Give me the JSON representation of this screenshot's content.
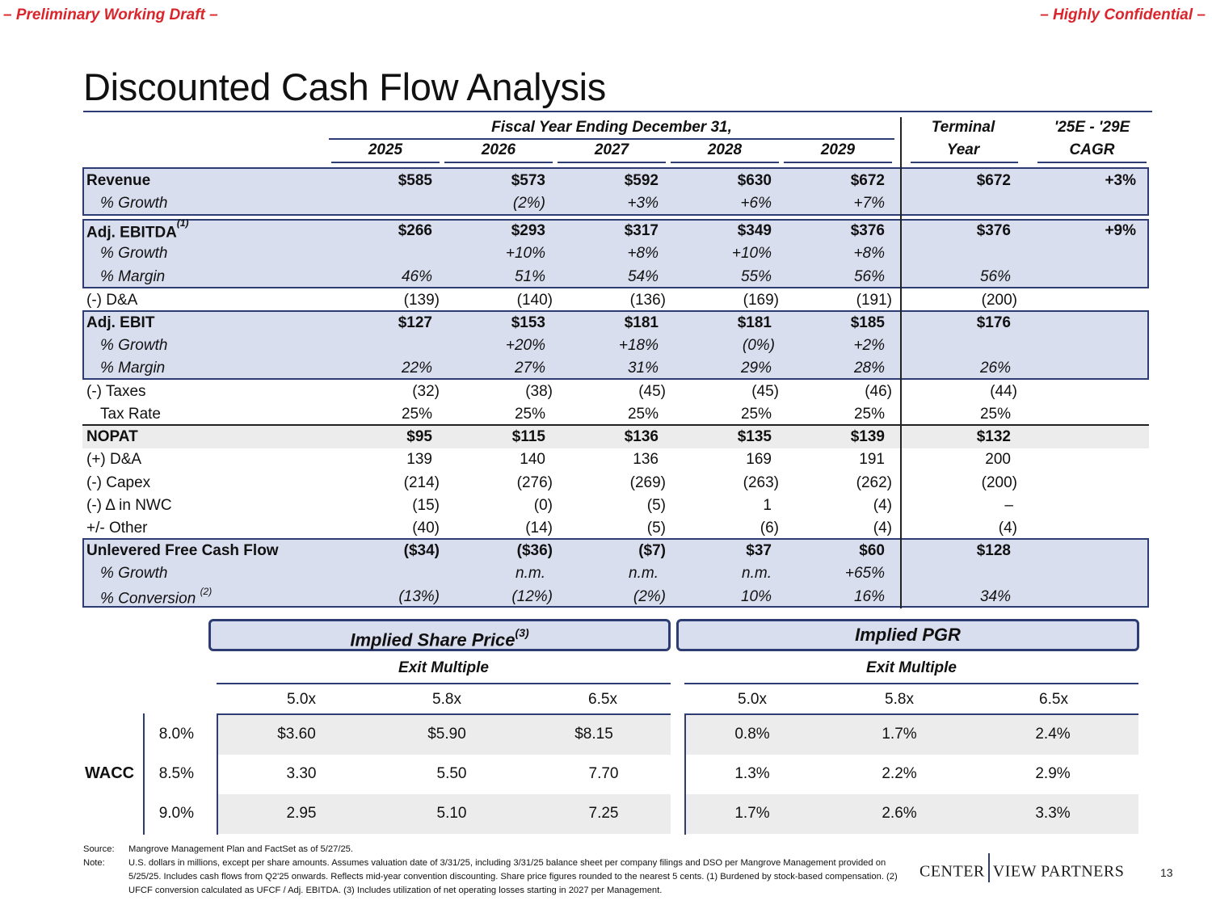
{
  "banner": {
    "left": "– Preliminary Working Draft –",
    "right": "– Highly Confidential –"
  },
  "title": "Discounted Cash Flow Analysis",
  "header": {
    "fiscal": "Fiscal Year Ending December 31,",
    "years": [
      "2025",
      "2026",
      "2027",
      "2028",
      "2029"
    ],
    "terminal_line1": "Terminal",
    "terminal_line2": "Year",
    "cagr_line1": "'25E - '29E",
    "cagr_line2": "CAGR"
  },
  "rows": {
    "revenue": {
      "label": "Revenue",
      "values": [
        "$585",
        "$573",
        "$592",
        "$630",
        "$672"
      ],
      "terminal": "$672",
      "cagr": "+3%"
    },
    "revenue_growth": {
      "label": "% Growth",
      "values": [
        "",
        "(2%)",
        "+3%",
        "+6%",
        "+7%"
      ],
      "terminal": ""
    },
    "ebitda": {
      "label": "Adj. EBITDA",
      "note": "(1)",
      "values": [
        "$266",
        "$293",
        "$317",
        "$349",
        "$376"
      ],
      "terminal": "$376",
      "cagr": "+9%"
    },
    "ebitda_growth": {
      "label": "% Growth",
      "values": [
        "",
        "+10%",
        "+8%",
        "+10%",
        "+8%"
      ],
      "terminal": ""
    },
    "ebitda_margin": {
      "label": "% Margin",
      "values": [
        "46%",
        "51%",
        "54%",
        "55%",
        "56%"
      ],
      "terminal": "56%"
    },
    "da": {
      "label": "(-) D&A",
      "values": [
        "(139)",
        "(140)",
        "(136)",
        "(169)",
        "(191)"
      ],
      "terminal": "(200)"
    },
    "ebit": {
      "label": "Adj. EBIT",
      "values": [
        "$127",
        "$153",
        "$181",
        "$181",
        "$185"
      ],
      "terminal": "$176"
    },
    "ebit_growth": {
      "label": "% Growth",
      "values": [
        "",
        "+20%",
        "+18%",
        "(0%)",
        "+2%"
      ],
      "terminal": ""
    },
    "ebit_margin": {
      "label": "% Margin",
      "values": [
        "22%",
        "27%",
        "31%",
        "29%",
        "28%"
      ],
      "terminal": "26%"
    },
    "taxes": {
      "label": "(-) Taxes",
      "values": [
        "(32)",
        "(38)",
        "(45)",
        "(45)",
        "(46)"
      ],
      "terminal": "(44)"
    },
    "tax_rate": {
      "label": "Tax Rate",
      "values": [
        "25%",
        "25%",
        "25%",
        "25%",
        "25%"
      ],
      "terminal": "25%"
    },
    "nopat": {
      "label": "NOPAT",
      "values": [
        "$95",
        "$115",
        "$136",
        "$135",
        "$139"
      ],
      "terminal": "$132"
    },
    "plus_da": {
      "label": "(+) D&A",
      "values": [
        "139",
        "140",
        "136",
        "169",
        "191"
      ],
      "terminal": "200"
    },
    "capex": {
      "label": "(-) Capex",
      "values": [
        "(214)",
        "(276)",
        "(269)",
        "(263)",
        "(262)"
      ],
      "terminal": "(200)"
    },
    "nwc": {
      "label": "(-) Δ in NWC",
      "values": [
        "(15)",
        "(0)",
        "(5)",
        "1",
        "(4)"
      ],
      "terminal": "–"
    },
    "other": {
      "label": "+/- Other",
      "values": [
        "(40)",
        "(14)",
        "(5)",
        "(6)",
        "(4)"
      ],
      "terminal": "(4)"
    },
    "ufcf": {
      "label": "Unlevered Free Cash Flow",
      "values": [
        "($34)",
        "($36)",
        "($7)",
        "$37",
        "$60"
      ],
      "terminal": "$128"
    },
    "ufcf_growth": {
      "label": "% Growth",
      "values": [
        "",
        "n.m.",
        "n.m.",
        "n.m.",
        "+65%"
      ],
      "terminal": ""
    },
    "ufcf_conversion": {
      "label": "% Conversion",
      "note": "(2)",
      "values": [
        "(13%)",
        "(12%)",
        "(2%)",
        "10%",
        "16%"
      ],
      "terminal": "34%"
    }
  },
  "sensitivity": {
    "share_price": {
      "title": "Implied Share Price",
      "note": "(3)",
      "subtitle": "Exit Multiple",
      "multiples": [
        "5.0x",
        "5.8x",
        "6.5x"
      ],
      "rows": [
        [
          "$3.60",
          "$5.90",
          "$8.15"
        ],
        [
          "3.30",
          "5.50",
          "7.70"
        ],
        [
          "2.95",
          "5.10",
          "7.25"
        ]
      ]
    },
    "pgr": {
      "title": "Implied PGR",
      "subtitle": "Exit Multiple",
      "multiples": [
        "5.0x",
        "5.8x",
        "6.5x"
      ],
      "rows": [
        [
          "0.8%",
          "1.7%",
          "2.4%"
        ],
        [
          "1.3%",
          "2.2%",
          "2.9%"
        ],
        [
          "1.7%",
          "2.6%",
          "3.3%"
        ]
      ]
    },
    "wacc_label": "WACC",
    "wacc": [
      "8.0%",
      "8.5%",
      "9.0%"
    ]
  },
  "footnotes": {
    "source_key": "Source:",
    "source": "Mangrove Management Plan and FactSet as of 5/27/25.",
    "note_key": "Note:",
    "note": "U.S. dollars in millions, except per share amounts. Assumes valuation date of 3/31/25, including 3/31/25 balance sheet per company filings and DSO per Mangrove Management provided on 5/25/25. Includes cash flows from Q2'25 onwards. Reflects mid-year convention discounting. Share price figures rounded to the nearest 5 cents. (1) Burdened by stock-based compensation. (2) UFCF conversion calculated as UFCF / Adj. EBITDA. (3) Includes utilization of net operating losses starting in 2027 per Management."
  },
  "logo": {
    "left": "CENTER",
    "right": "VIEW PARTNERS"
  },
  "page_number": "13"
}
